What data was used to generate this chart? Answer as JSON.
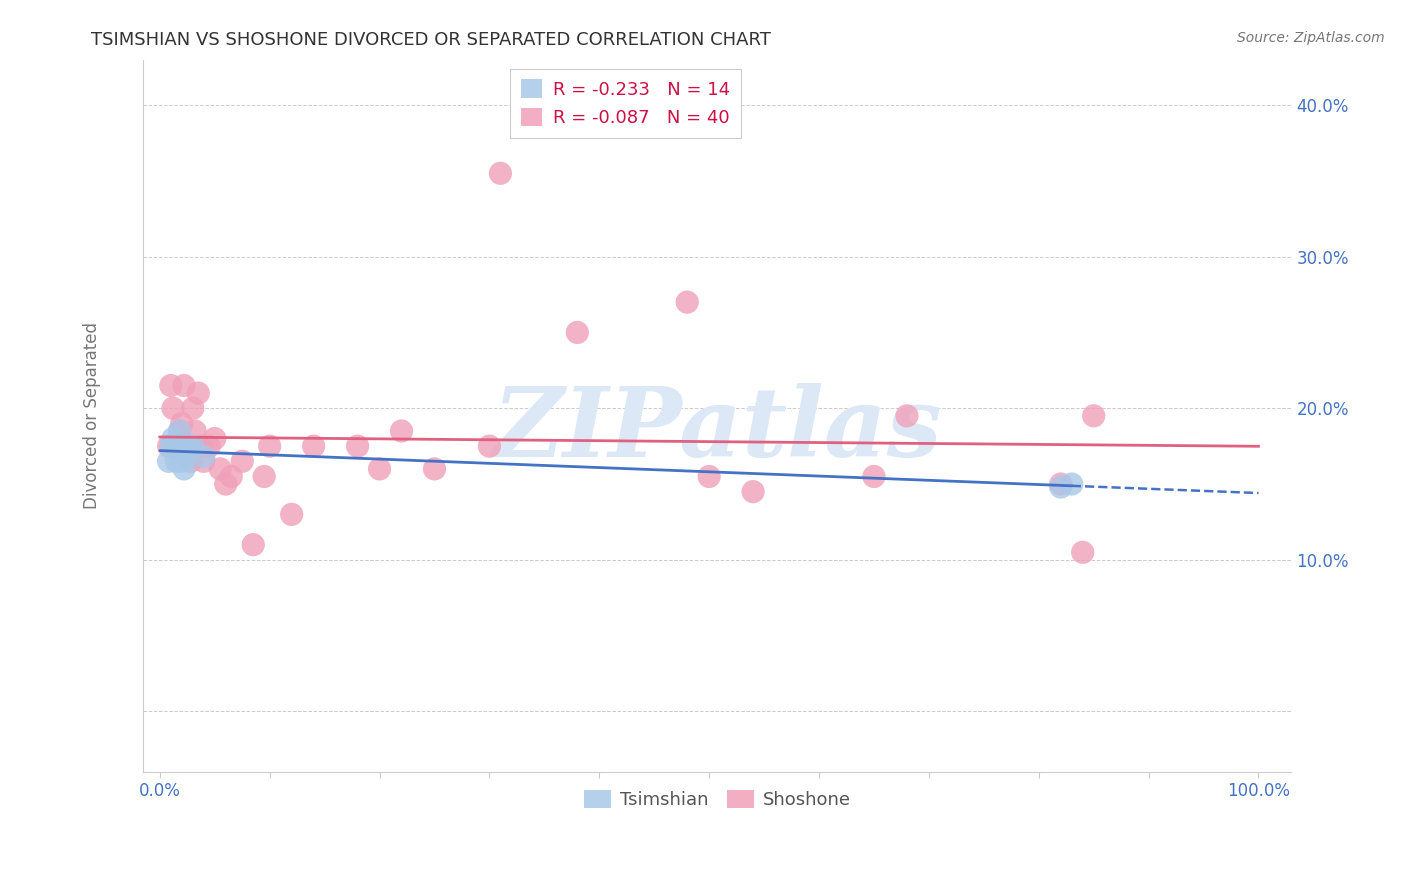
{
  "title": "TSIMSHIAN VS SHOSHONE DIVORCED OR SEPARATED CORRELATION CHART",
  "source": "Source: ZipAtlas.com",
  "ylabel": "Divorced or Separated",
  "legend_label1": "Tsimshian",
  "legend_label2": "Shoshone",
  "R1": -0.233,
  "N1": 14,
  "R2": -0.087,
  "N2": 40,
  "color_tsimshian": "#a8c8e8",
  "color_shoshone": "#f0a0b8",
  "color_tsimshian_line": "#4472c4",
  "color_shoshone_line": "#e06080",
  "color_axis_labels": "#4472c4",
  "color_title": "#333333",
  "color_source": "#777777",
  "watermark_text": "ZIPatlas",
  "watermark_color": "#dce8f5",
  "tsimshian_x": [
    0.008,
    0.01,
    0.012,
    0.015,
    0.016,
    0.018,
    0.02,
    0.022,
    0.024,
    0.026,
    0.03,
    0.04,
    0.82,
    0.83
  ],
  "tsimshian_y": [
    0.165,
    0.175,
    0.18,
    0.165,
    0.175,
    0.185,
    0.165,
    0.16,
    0.17,
    0.175,
    0.175,
    0.168,
    0.148,
    0.15
  ],
  "shoshone_x": [
    0.008,
    0.01,
    0.012,
    0.015,
    0.018,
    0.02,
    0.022,
    0.025,
    0.028,
    0.03,
    0.032,
    0.035,
    0.038,
    0.04,
    0.045,
    0.05,
    0.055,
    0.06,
    0.065,
    0.075,
    0.085,
    0.095,
    0.1,
    0.12,
    0.14,
    0.18,
    0.2,
    0.22,
    0.25,
    0.3,
    0.31,
    0.38,
    0.48,
    0.5,
    0.54,
    0.65,
    0.68,
    0.82,
    0.84,
    0.85
  ],
  "shoshone_y": [
    0.175,
    0.215,
    0.2,
    0.175,
    0.185,
    0.19,
    0.215,
    0.175,
    0.165,
    0.2,
    0.185,
    0.21,
    0.175,
    0.165,
    0.175,
    0.18,
    0.16,
    0.15,
    0.155,
    0.165,
    0.11,
    0.155,
    0.175,
    0.13,
    0.175,
    0.175,
    0.16,
    0.185,
    0.16,
    0.175,
    0.355,
    0.25,
    0.27,
    0.155,
    0.145,
    0.155,
    0.195,
    0.15,
    0.105,
    0.195
  ],
  "x_ticks": [
    0.0,
    0.1,
    0.2,
    0.3,
    0.4,
    0.5,
    0.6,
    0.7,
    0.8,
    0.9,
    1.0
  ],
  "x_tick_labels_show": [
    "0.0%",
    "100.0%"
  ],
  "y_ticks": [
    0.0,
    0.1,
    0.2,
    0.3,
    0.4
  ],
  "y_tick_labels": [
    "",
    "10.0%",
    "20.0%",
    "30.0%",
    "40.0%"
  ]
}
